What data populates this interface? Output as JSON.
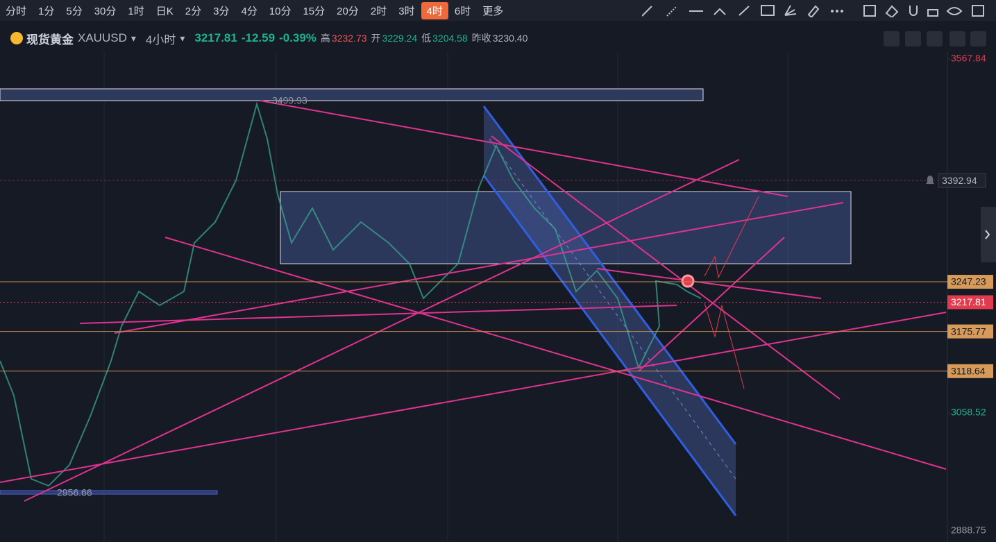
{
  "toolbar": {
    "intervals": [
      "分时",
      "1分",
      "5分",
      "30分",
      "1时",
      "日K",
      "2分",
      "3分",
      "4分",
      "10分",
      "15分",
      "20分",
      "2时",
      "3时",
      "4时",
      "6时",
      "更多"
    ],
    "active": "4时"
  },
  "symbol": {
    "name": "现货黄金",
    "code": "XAUUSD",
    "period": "4小时",
    "price": "3217.81",
    "change": "-12.59",
    "change_pct": "-0.39%",
    "high_label": "高",
    "high": "3232.73",
    "open_label": "开",
    "open": "3229.24",
    "low_label": "低",
    "low": "3204.58",
    "prev_close_label": "昨收",
    "prev_close": "3230.40"
  },
  "price_axis": {
    "ylim": [
      2888.75,
      3567.84
    ],
    "ticks": [
      3567.84,
      3058.52,
      2888.75
    ],
    "markers": [
      {
        "value": 3392.94,
        "style": "alert"
      },
      {
        "value": 3247.23,
        "style": "level"
      },
      {
        "value": 3217.81,
        "style": "current"
      },
      {
        "value": 3175.77,
        "style": "level"
      },
      {
        "value": 3118.64,
        "style": "level"
      }
    ]
  },
  "chart_labels": [
    "3499.93",
    "2956.66"
  ]
}
